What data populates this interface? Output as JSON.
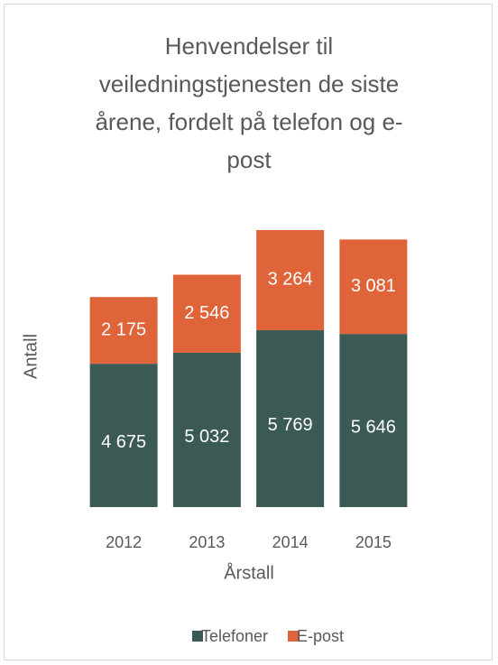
{
  "chart_data": {
    "type": "stacked_bar",
    "title": "Henvendelser til veiledningstjenesten de siste årene, fordelt på telefon og e-post",
    "x_label": "Årstall",
    "y_label": "Antall",
    "categories": [
      "2012",
      "2013",
      "2014",
      "2015"
    ],
    "series": [
      {
        "name": "Telefoner",
        "color": "#3b5a56",
        "values": [
          4675,
          5032,
          5769,
          5646
        ],
        "value_labels": [
          "4 675",
          "5 032",
          "5 769",
          "5 646"
        ]
      },
      {
        "name": "E-post",
        "color": "#e0643a",
        "values": [
          2175,
          2546,
          3264,
          3081
        ],
        "value_labels": [
          "2 175",
          "2 546",
          "3 264",
          "3 081"
        ]
      }
    ],
    "legend": "bottom"
  }
}
